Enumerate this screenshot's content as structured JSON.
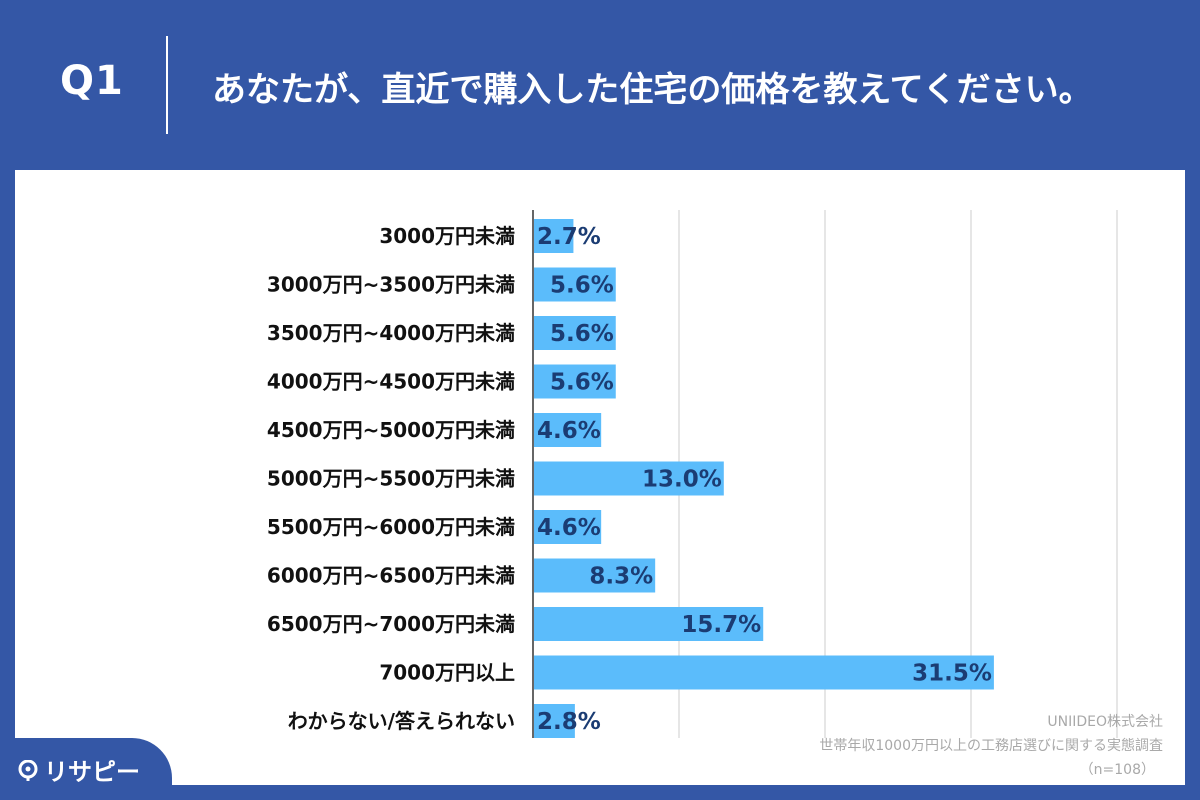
{
  "header": {
    "q_label": "Q1",
    "question": "あなたが、直近で購入した住宅の価格を教えてください。"
  },
  "chart_data": {
    "type": "bar",
    "orientation": "horizontal",
    "categories": [
      "3000万円未満",
      "3000万円~3500万円未満",
      "3500万円~4000万円未満",
      "4000万円~4500万円未満",
      "4500万円~5000万円未満",
      "5000万円~5500万円未満",
      "5500万円~6000万円未満",
      "6000万円~6500万円未満",
      "6500万円~7000万円未満",
      "7000万円以上",
      "わからない/答えられない"
    ],
    "values": [
      2.7,
      5.6,
      5.6,
      5.6,
      4.6,
      13.0,
      4.6,
      8.3,
      15.7,
      31.5,
      2.8
    ],
    "value_labels": [
      "2.7%",
      "5.6%",
      "5.6%",
      "5.6%",
      "4.6%",
      "13.0%",
      "4.6%",
      "8.3%",
      "15.7%",
      "31.5%",
      "2.8%"
    ],
    "xlim": [
      0,
      40
    ],
    "grid": true,
    "legend": "none",
    "bar_color": "#5bbcfb",
    "label_color": "#1b3c73"
  },
  "source": {
    "company": "UNIIDEO株式会社",
    "survey": "世帯年収1000万円以上の工務店選びに関する実態調査",
    "sample": "（n=108）"
  },
  "brand": {
    "logo_text": "リサピー",
    "logo_icon": "location-pin-icon"
  },
  "colors": {
    "background": "#3457a6",
    "card": "#ffffff",
    "grid": "#cccccc"
  }
}
